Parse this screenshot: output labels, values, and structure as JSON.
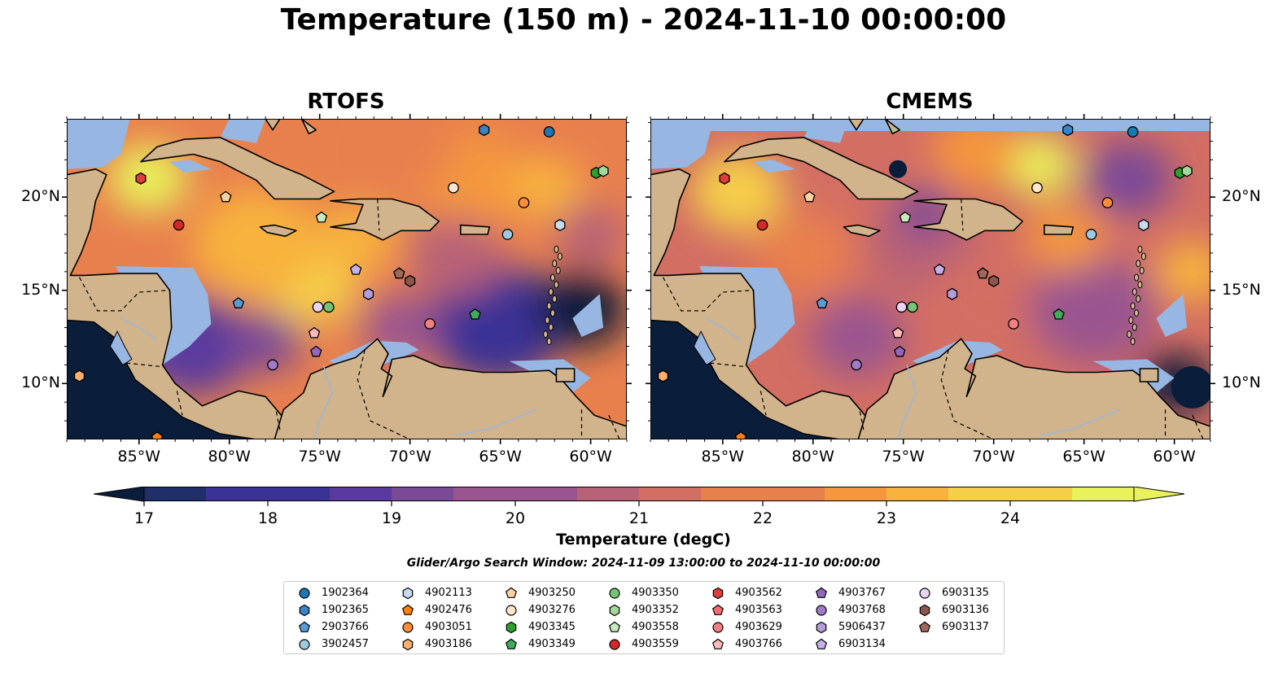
{
  "title": "Temperature (150 m) - 2024-11-10 00:00:00",
  "panels": [
    {
      "title": "RTOFS",
      "variant": "warm"
    },
    {
      "title": "CMEMS",
      "variant": "mixed"
    }
  ],
  "map": {
    "lon_range": [
      -89,
      -58
    ],
    "lat_range": [
      7,
      24.2
    ],
    "x_ticks": [
      {
        "lon": -85,
        "label": "85°W"
      },
      {
        "lon": -80,
        "label": "80°W"
      },
      {
        "lon": -75,
        "label": "75°W"
      },
      {
        "lon": -70,
        "label": "70°W"
      },
      {
        "lon": -65,
        "label": "65°W"
      },
      {
        "lon": -60,
        "label": "60°W"
      }
    ],
    "y_ticks": [
      {
        "lat": 10,
        "label": "10°N"
      },
      {
        "lat": 15,
        "label": "15°N"
      },
      {
        "lat": 20,
        "label": "20°N"
      }
    ],
    "land_color": "#d2b48c",
    "shelf_color": "#97b6e1"
  },
  "colorbar": {
    "label": "Temperature (degC)",
    "min": 16.6,
    "max": 24.6,
    "ticks": [
      "17",
      "18",
      "19",
      "20",
      "21",
      "22",
      "23",
      "24"
    ],
    "colors": [
      "#0a1d3a",
      "#1f2f6a",
      "#3b3295",
      "#5a3a9e",
      "#7a4a97",
      "#9a5590",
      "#b86277",
      "#d36e63",
      "#e8804e",
      "#f4973d",
      "#f8b23e",
      "#f5cf4a",
      "#e8f25a"
    ]
  },
  "search_window": "Glider/Argo Search Window: 2024-11-09 13:00:00 to 2024-11-10 00:00:00",
  "floats": [
    {
      "id": "1902364",
      "marker": "circle",
      "color": "#1f77b4",
      "lon": -62.3,
      "lat": 23.5
    },
    {
      "id": "1902365",
      "marker": "hexagon",
      "color": "#3d82c4",
      "lon": -65.9,
      "lat": 23.6
    },
    {
      "id": "2903766",
      "marker": "pentagon",
      "color": "#5a9bd5",
      "lon": -79.5,
      "lat": 14.3
    },
    {
      "id": "3902457",
      "marker": "circle",
      "color": "#9ecae1",
      "lon": -64.6,
      "lat": 18.0
    },
    {
      "id": "4902113",
      "marker": "hexagon",
      "color": "#c6dbef",
      "lon": -61.7,
      "lat": 18.5
    },
    {
      "id": "4902476",
      "marker": "pentagon",
      "color": "#ff7f0e",
      "lon": -84.0,
      "lat": 7.1
    },
    {
      "id": "4903051",
      "marker": "circle",
      "color": "#fd8d3c",
      "lon": -63.7,
      "lat": 19.7
    },
    {
      "id": "4903186",
      "marker": "hexagon",
      "color": "#fdae6b",
      "lon": -88.3,
      "lat": 10.4
    },
    {
      "id": "4903250",
      "marker": "pentagon",
      "color": "#fdd0a2",
      "lon": -80.2,
      "lat": 20.0
    },
    {
      "id": "4903276",
      "marker": "circle",
      "color": "#fee6ce",
      "lon": -67.6,
      "lat": 20.5
    },
    {
      "id": "4903345",
      "marker": "hexagon",
      "color": "#2ca02c",
      "lon": -59.7,
      "lat": 21.3
    },
    {
      "id": "4903349",
      "marker": "pentagon",
      "color": "#41ab5d",
      "lon": -66.4,
      "lat": 13.7
    },
    {
      "id": "4903350",
      "marker": "circle",
      "color": "#74c476",
      "lon": -74.5,
      "lat": 14.1
    },
    {
      "id": "4903352",
      "marker": "hexagon",
      "color": "#a1d99b",
      "lon": -59.3,
      "lat": 21.4
    },
    {
      "id": "4903558",
      "marker": "pentagon",
      "color": "#c7e9c0",
      "lon": -74.9,
      "lat": 18.9
    },
    {
      "id": "4903559",
      "marker": "circle",
      "color": "#d62728",
      "lon": -82.8,
      "lat": 18.5
    },
    {
      "id": "4903562",
      "marker": "hexagon",
      "color": "#e03c3c",
      "lon": -84.9,
      "lat": 21.0
    },
    {
      "id": "4903563",
      "marker": "pentagon",
      "color": "#ef6f6f",
      "lon": -70.6,
      "lat": 15.9
    },
    {
      "id": "4903629",
      "marker": "circle",
      "color": "#f08080",
      "lon": -68.9,
      "lat": 13.2
    },
    {
      "id": "4903766",
      "marker": "pentagon",
      "color": "#fcbaba",
      "lon": -75.3,
      "lat": 12.7
    },
    {
      "id": "4903767",
      "marker": "pentagon",
      "color": "#9467bd",
      "lon": -75.2,
      "lat": 11.7
    },
    {
      "id": "4903768",
      "marker": "circle",
      "color": "#9e7cc8",
      "lon": -77.6,
      "lat": 11.0
    },
    {
      "id": "5906437",
      "marker": "hexagon",
      "color": "#b39ddb",
      "lon": -72.3,
      "lat": 14.8
    },
    {
      "id": "6903134",
      "marker": "pentagon",
      "color": "#c5b0e8",
      "lon": -73.0,
      "lat": 16.1
    },
    {
      "id": "6903135",
      "marker": "circle",
      "color": "#e8d5f5",
      "lon": -75.1,
      "lat": 14.1
    },
    {
      "id": "6903136",
      "marker": "hexagon",
      "color": "#8c564b",
      "lon": -70.0,
      "lat": 15.5
    },
    {
      "id": "6903137",
      "marker": "pentagon",
      "color": "#a0685c",
      "lon": -70.6,
      "lat": 15.9
    }
  ]
}
